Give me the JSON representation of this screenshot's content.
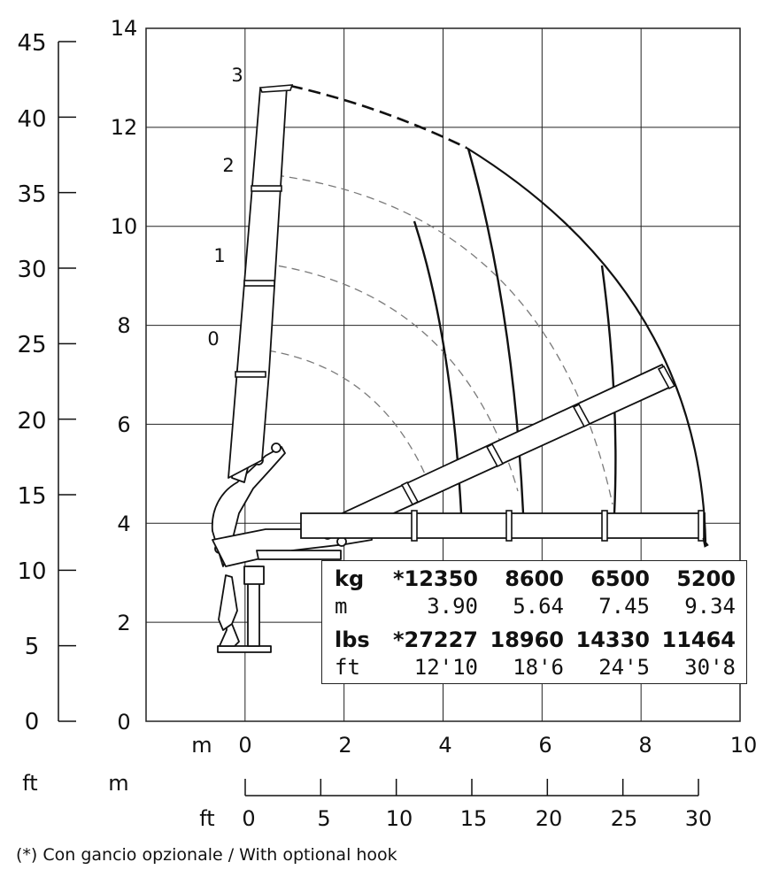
{
  "chart_data": {
    "type": "crane-reach-diagram",
    "x_axis": {
      "unit_label": "m",
      "ticks": [
        0,
        2,
        4,
        6,
        8,
        10
      ],
      "range": [
        -2,
        10
      ]
    },
    "y_axis": {
      "ticks": [
        0,
        2,
        4,
        6,
        8,
        10,
        12,
        14
      ],
      "range": [
        0,
        14
      ]
    },
    "y_axis_ft": {
      "unit_label": "ft",
      "ticks": [
        0,
        5,
        10,
        15,
        20,
        25,
        30,
        35,
        40,
        45
      ]
    },
    "x_scale_ft": {
      "unit_label": "ft",
      "corner_label": "m",
      "ticks": [
        0,
        5,
        10,
        15,
        20,
        25,
        30
      ]
    },
    "x_ft_corner_label": "ft",
    "grid": true,
    "extension_labels": [
      "0",
      "1",
      "2",
      "3"
    ],
    "boom_top_m": 12.8,
    "envelope_radii_m": [
      3.9,
      5.64,
      7.45,
      9.34
    ]
  },
  "table": {
    "row_kg": [
      "kg",
      "*12350",
      "8600",
      "6500",
      "5200"
    ],
    "row_m": [
      "m",
      "3.90",
      "5.64",
      "7.45",
      "9.34"
    ],
    "row_lbs": [
      "lbs",
      "*27227",
      "18960",
      "14330",
      "11464"
    ],
    "row_ft": [
      "ft",
      "12'10",
      "18'6",
      "24'5",
      "30'8"
    ]
  },
  "footnote": "(*) Con gancio opzionale / With optional hook",
  "colors": {
    "line": "#111111",
    "dashed": "#7a7a7a",
    "grid": "#222222"
  }
}
